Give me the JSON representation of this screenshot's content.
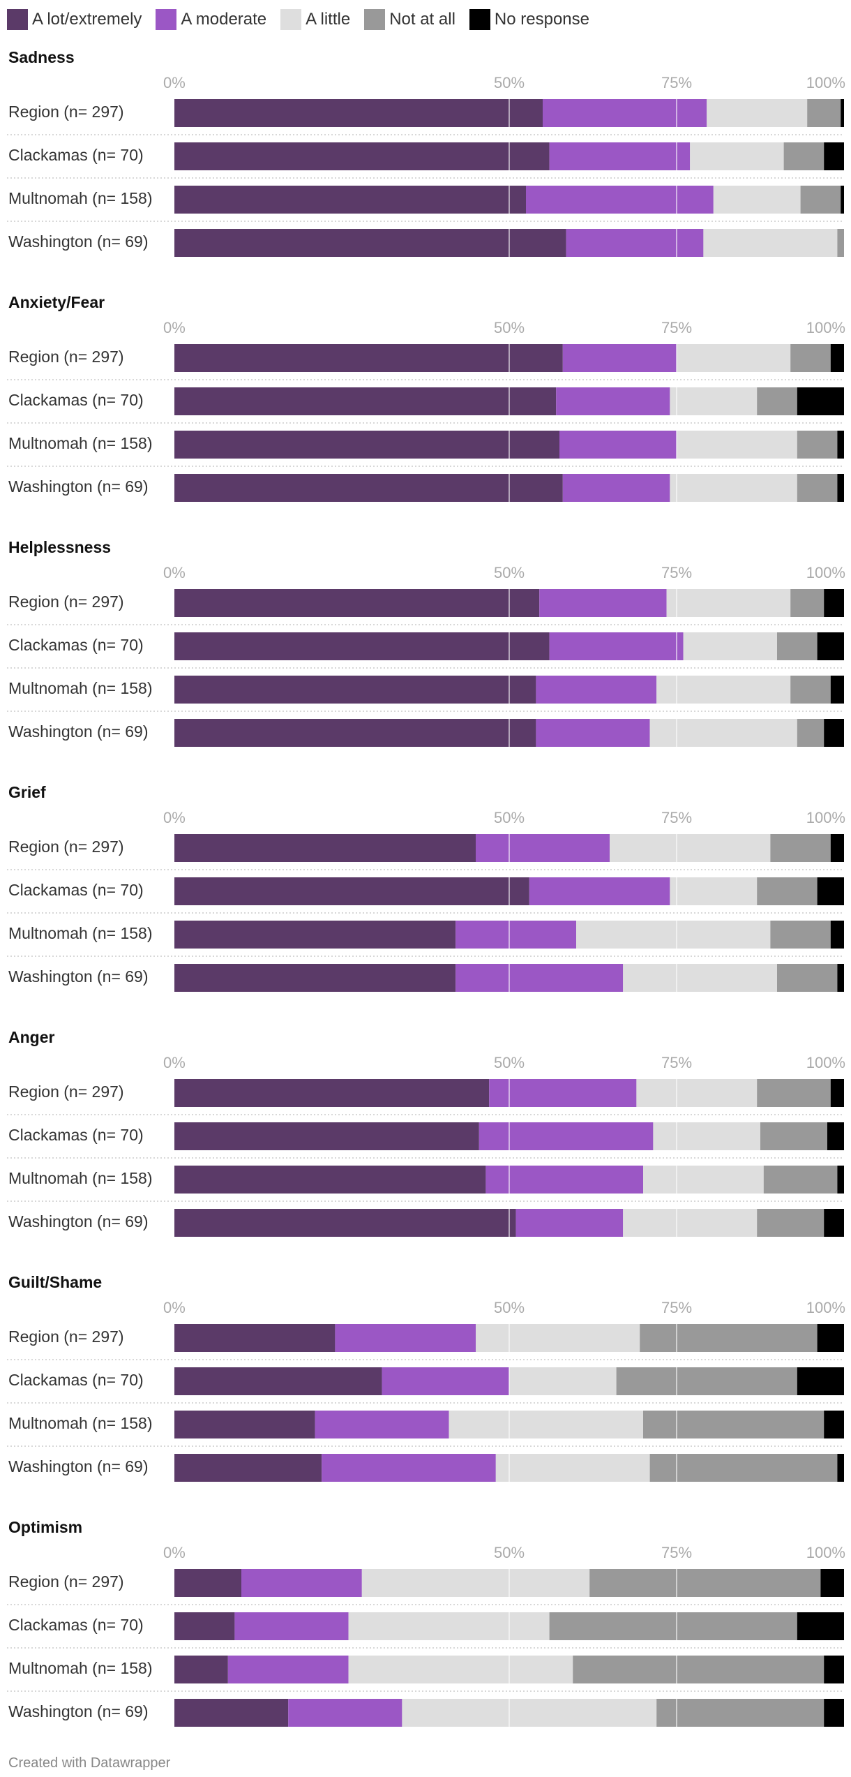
{
  "legend": [
    {
      "name": "A lot/extremely",
      "color": "#5b3a68"
    },
    {
      "name": "A moderate",
      "color": "#9b57c5"
    },
    {
      "name": "A little",
      "color": "#dedede"
    },
    {
      "name": "Not at all",
      "color": "#999999"
    },
    {
      "name": "No response",
      "color": "#000000"
    }
  ],
  "footer": {
    "credit": "Created with Datawrapper"
  },
  "chart_data": {
    "type": "bar",
    "orientation": "horizontal",
    "stacked": true,
    "axis": {
      "min": 0,
      "max": 100,
      "ticks": [
        0,
        50,
        75,
        100
      ],
      "tick_labels": [
        "0%",
        "50%",
        "75%",
        "100%"
      ]
    },
    "series_names": [
      "A lot/extremely",
      "A moderate",
      "A little",
      "Not at all",
      "No response"
    ],
    "groups": [
      {
        "title": "Sadness",
        "rows": [
          {
            "label": "Region (n= 297)",
            "values": [
              55,
              24.5,
              15,
              5,
              1
            ]
          },
          {
            "label": "Clackamas (n= 70)",
            "values": [
              56,
              21,
              14,
              6,
              3
            ]
          },
          {
            "label": "Multnomah (n= 158)",
            "values": [
              52.5,
              28,
              13,
              6,
              1
            ]
          },
          {
            "label": "Washington (n= 69)",
            "values": [
              58.5,
              20.5,
              20,
              1,
              0
            ]
          }
        ]
      },
      {
        "title": "Anxiety/Fear",
        "rows": [
          {
            "label": "Region (n= 297)",
            "values": [
              58,
              17,
              17,
              6,
              2
            ]
          },
          {
            "label": "Clackamas (n= 70)",
            "values": [
              57,
              17,
              13,
              6,
              7
            ]
          },
          {
            "label": "Multnomah (n= 158)",
            "values": [
              57.5,
              17.5,
              18,
              6,
              1
            ]
          },
          {
            "label": "Washington (n= 69)",
            "values": [
              58,
              16,
              19,
              6,
              1
            ]
          }
        ]
      },
      {
        "title": "Helplessness",
        "rows": [
          {
            "label": "Region (n= 297)",
            "values": [
              54.5,
              19,
              18.5,
              5,
              3
            ]
          },
          {
            "label": "Clackamas (n= 70)",
            "values": [
              56,
              20,
              14,
              6,
              4
            ]
          },
          {
            "label": "Multnomah (n= 158)",
            "values": [
              54,
              18,
              20,
              6,
              2
            ]
          },
          {
            "label": "Washington (n= 69)",
            "values": [
              54,
              17,
              22,
              4,
              3
            ]
          }
        ]
      },
      {
        "title": "Grief",
        "rows": [
          {
            "label": "Region (n= 297)",
            "values": [
              45,
              20,
              24,
              9,
              2
            ]
          },
          {
            "label": "Clackamas (n= 70)",
            "values": [
              53,
              21,
              13,
              9,
              4
            ]
          },
          {
            "label": "Multnomah (n= 158)",
            "values": [
              42,
              18,
              29,
              9,
              2
            ]
          },
          {
            "label": "Washington (n= 69)",
            "values": [
              42,
              25,
              23,
              9,
              1
            ]
          }
        ]
      },
      {
        "title": "Anger",
        "rows": [
          {
            "label": "Region (n= 297)",
            "values": [
              47,
              22,
              18,
              11,
              2
            ]
          },
          {
            "label": "Clackamas (n= 70)",
            "values": [
              45.5,
              26,
              16,
              10,
              2.5
            ]
          },
          {
            "label": "Multnomah (n= 158)",
            "values": [
              46.5,
              23.5,
              18,
              11,
              1
            ]
          },
          {
            "label": "Washington (n= 69)",
            "values": [
              51,
              16,
              20,
              10,
              3
            ]
          }
        ]
      },
      {
        "title": "Guilt/Shame",
        "rows": [
          {
            "label": "Region (n= 297)",
            "values": [
              24,
              21,
              24.5,
              26.5,
              4
            ]
          },
          {
            "label": "Clackamas (n= 70)",
            "values": [
              31,
              19,
              16,
              27,
              7
            ]
          },
          {
            "label": "Multnomah (n= 158)",
            "values": [
              21,
              20,
              29,
              27,
              3
            ]
          },
          {
            "label": "Washington (n= 69)",
            "values": [
              22,
              26,
              23,
              28,
              1
            ]
          }
        ]
      },
      {
        "title": "Optimism",
        "rows": [
          {
            "label": "Region (n= 297)",
            "values": [
              10,
              18,
              34,
              34.5,
              3.5
            ]
          },
          {
            "label": "Clackamas (n= 70)",
            "values": [
              9,
              17,
              30,
              37,
              7
            ]
          },
          {
            "label": "Multnomah (n= 158)",
            "values": [
              8,
              18,
              33.5,
              37.5,
              3
            ]
          },
          {
            "label": "Washington (n= 69)",
            "values": [
              17,
              17,
              38,
              25,
              3
            ]
          }
        ]
      }
    ]
  }
}
